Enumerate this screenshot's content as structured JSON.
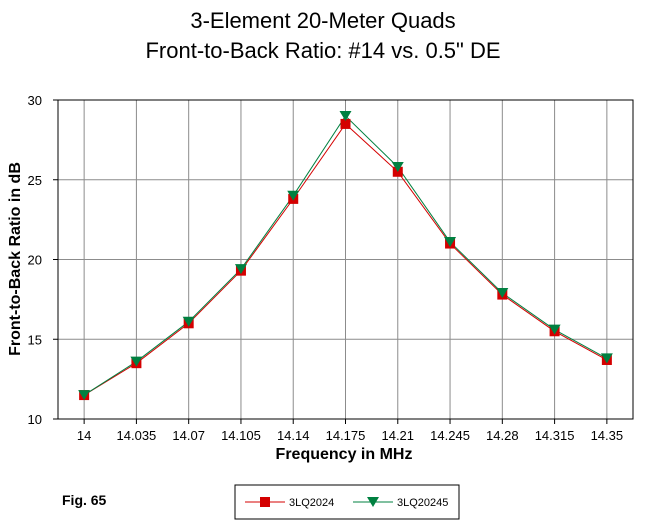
{
  "chart_data": {
    "type": "line",
    "title": "3-Element 20-Meter Quads",
    "subtitle": "Front-to-Back Ratio:  #14 vs. 0.5\" DE",
    "xlabel": "Frequency in MHz",
    "ylabel": "Front-to-Back Ratio in dB",
    "categories": [
      "14",
      "14.035",
      "14.07",
      "14.105",
      "14.14",
      "14.175",
      "14.21",
      "14.245",
      "14.28",
      "14.315",
      "14.35"
    ],
    "ylim": [
      10,
      30
    ],
    "yticks": [
      "10",
      "15",
      "20",
      "25",
      "30"
    ],
    "grid": true,
    "legend_position": "bottom-center",
    "series": [
      {
        "name": "3LQ2024",
        "color": "#d40000",
        "marker": "square",
        "values": [
          11.5,
          13.5,
          16.0,
          19.3,
          23.8,
          28.5,
          25.5,
          21.0,
          17.8,
          15.5,
          13.7
        ]
      },
      {
        "name": "3LQ20245",
        "color": "#008040",
        "marker": "triangle-down",
        "values": [
          11.5,
          13.6,
          16.1,
          19.4,
          24.0,
          29.0,
          25.8,
          21.1,
          17.9,
          15.6,
          13.8
        ]
      }
    ]
  },
  "figure_label": "Fig. 65"
}
